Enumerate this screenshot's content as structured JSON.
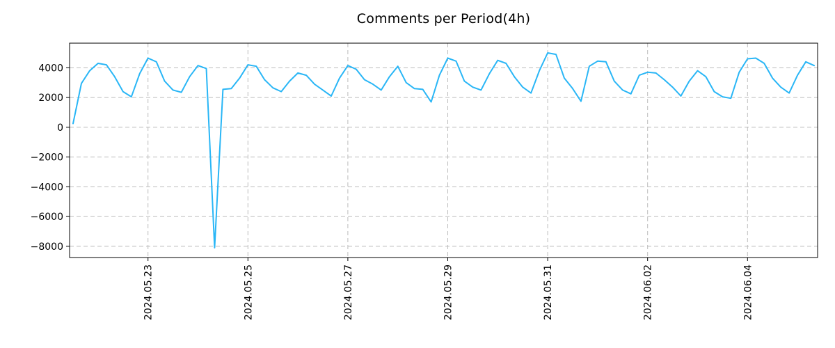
{
  "chart_data": {
    "type": "line",
    "title": "Comments per Period(4h)",
    "xlabel": "",
    "ylabel": "",
    "x_start": "2024-05-21T12:00:00",
    "x_step_hours": 4,
    "series": [
      {
        "name": "comments-per-4h",
        "values": [
          250,
          2950,
          3800,
          4300,
          4200,
          3400,
          2400,
          2050,
          3600,
          4650,
          4400,
          3100,
          2500,
          2350,
          3400,
          4150,
          3950,
          -8100,
          2550,
          2600,
          3300,
          4200,
          4100,
          3200,
          2650,
          2400,
          3100,
          3650,
          3500,
          2900,
          2500,
          2100,
          3300,
          4150,
          3900,
          3200,
          2900,
          2500,
          3400,
          4100,
          3000,
          2600,
          2550,
          1700,
          3500,
          4650,
          4450,
          3100,
          2700,
          2500,
          3600,
          4500,
          4300,
          3400,
          2700,
          2300,
          3800,
          5000,
          4900,
          3300,
          2600,
          1750,
          4100,
          4450,
          4400,
          3100,
          2500,
          2250,
          3500,
          3700,
          3650,
          3200,
          2700,
          2100,
          3100,
          3800,
          3400,
          2400,
          2050,
          1950,
          3700,
          4600,
          4650,
          4300,
          3300,
          2700,
          2300,
          3500,
          4400,
          4150
        ]
      }
    ],
    "x_tick_labels": [
      "2024.05.23",
      "2024.05.25",
      "2024.05.27",
      "2024.05.29",
      "2024.05.31",
      "2024.06.02",
      "2024.06.04"
    ],
    "y_ticks": [
      -8000,
      -6000,
      -4000,
      -2000,
      0,
      2000,
      4000
    ],
    "ylim": [
      -8755,
      5655
    ],
    "grid": true,
    "legend": "none",
    "line_color": "#29b6f6",
    "grid_color": "#bcbcbc",
    "axis_color": "#000000",
    "background": "#ffffff"
  }
}
